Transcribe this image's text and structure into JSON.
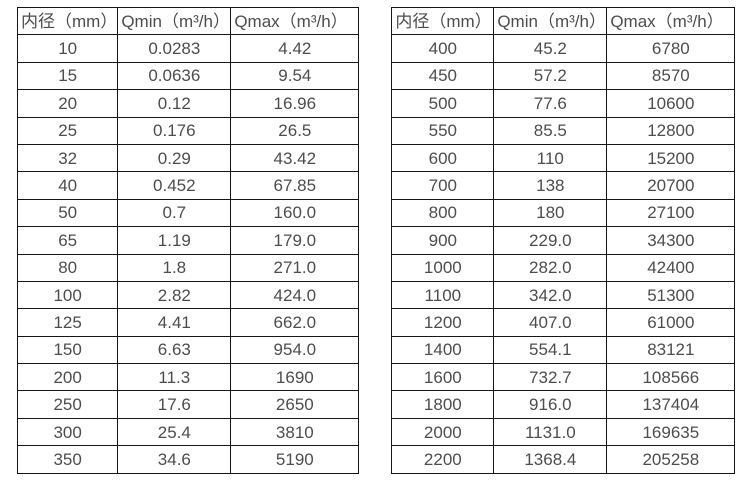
{
  "colors": {
    "background": "#ffffff",
    "text": "#4d4d4d",
    "border": "#161616"
  },
  "chart_data": [
    {
      "type": "table",
      "title": "",
      "headers": [
        "内径（mm）",
        "Qmin（m³/h）",
        "Qmax（m³/h）"
      ],
      "rows": [
        [
          "10",
          "0.0283",
          "4.42"
        ],
        [
          "15",
          "0.0636",
          "9.54"
        ],
        [
          "20",
          "0.12",
          "16.96"
        ],
        [
          "25",
          "0.176",
          "26.5"
        ],
        [
          "32",
          "0.29",
          "43.42"
        ],
        [
          "40",
          "0.452",
          "67.85"
        ],
        [
          "50",
          "0.7",
          "160.0"
        ],
        [
          "65",
          "1.19",
          "179.0"
        ],
        [
          "80",
          "1.8",
          "271.0"
        ],
        [
          "100",
          "2.82",
          "424.0"
        ],
        [
          "125",
          "4.41",
          "662.0"
        ],
        [
          "150",
          "6.63",
          "954.0"
        ],
        [
          "200",
          "11.3",
          "1690"
        ],
        [
          "250",
          "17.6",
          "2650"
        ],
        [
          "300",
          "25.4",
          "3810"
        ],
        [
          "350",
          "34.6",
          "5190"
        ]
      ]
    },
    {
      "type": "table",
      "title": "",
      "headers": [
        "内径（mm）",
        "Qmin（m³/h）",
        "Qmax（m³/h）"
      ],
      "rows": [
        [
          "400",
          "45.2",
          "6780"
        ],
        [
          "450",
          "57.2",
          "8570"
        ],
        [
          "500",
          "77.6",
          "10600"
        ],
        [
          "550",
          "85.5",
          "12800"
        ],
        [
          "600",
          "110",
          "15200"
        ],
        [
          "700",
          "138",
          "20700"
        ],
        [
          "800",
          "180",
          "27100"
        ],
        [
          "900",
          "229.0",
          "34300"
        ],
        [
          "1000",
          "282.0",
          "42400"
        ],
        [
          "1100",
          "342.0",
          "51300"
        ],
        [
          "1200",
          "407.0",
          "61000"
        ],
        [
          "1400",
          "554.1",
          "83121"
        ],
        [
          "1600",
          "732.7",
          "108566"
        ],
        [
          "1800",
          "916.0",
          "137404"
        ],
        [
          "2000",
          "1131.0",
          "169635"
        ],
        [
          "2200",
          "1368.4",
          "205258"
        ]
      ]
    }
  ]
}
